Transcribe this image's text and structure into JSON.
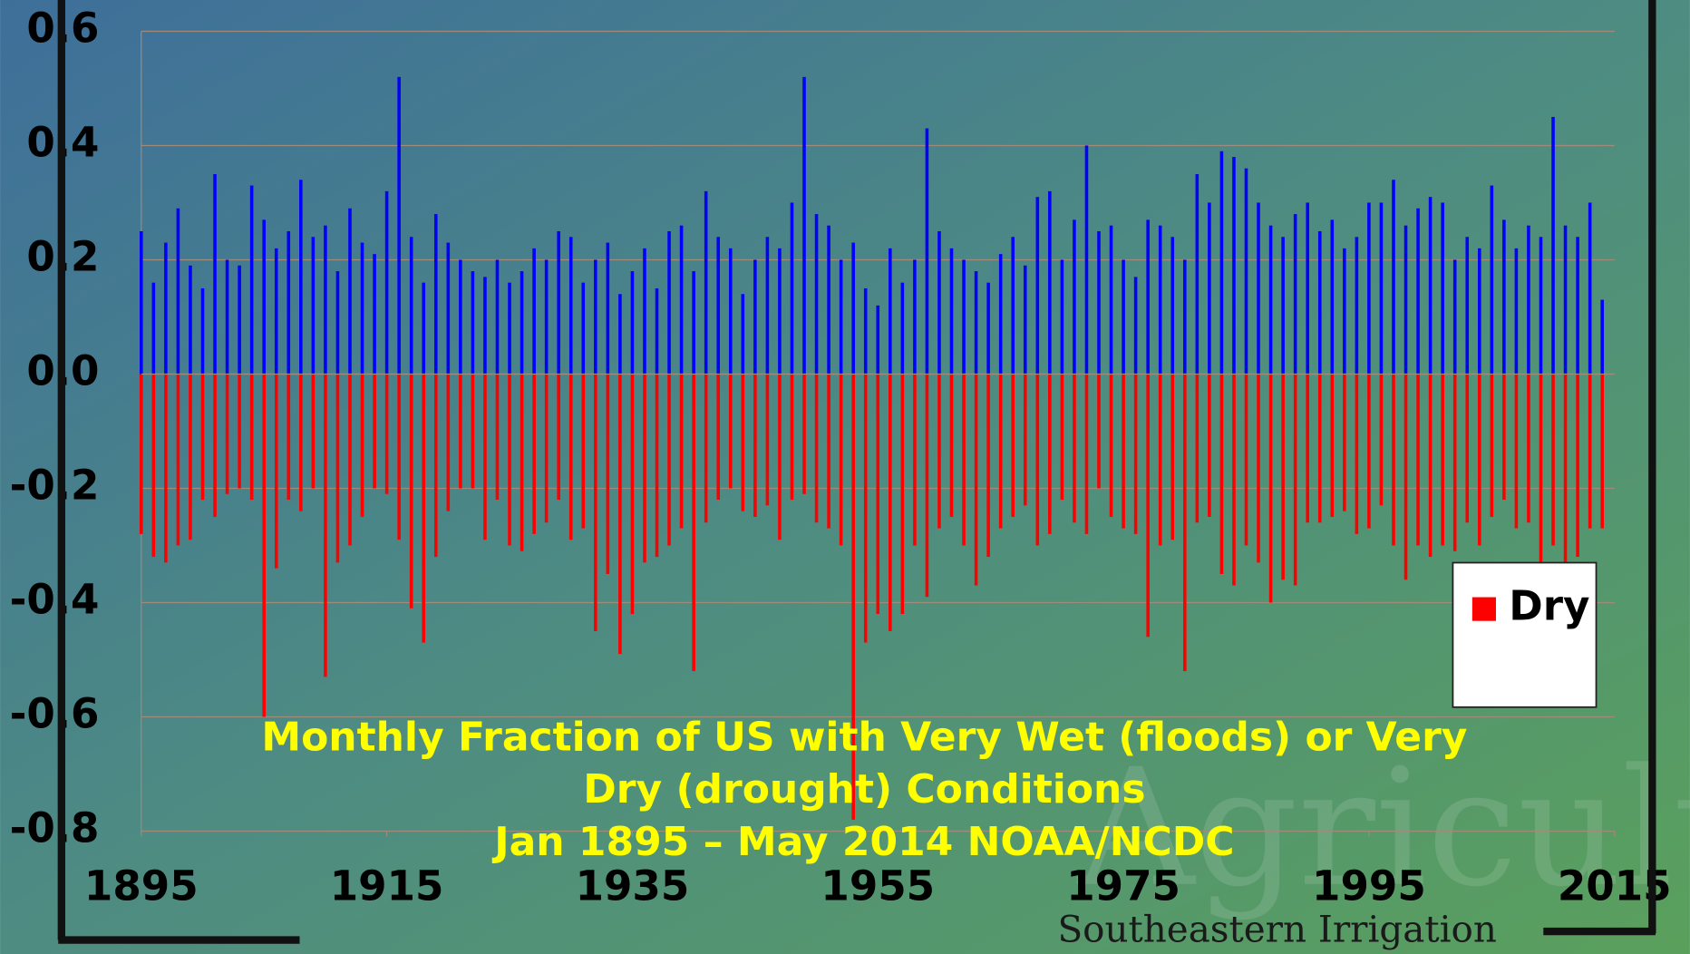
{
  "chart_data": {
    "type": "bar",
    "title_lines": [
      "Monthly Fraction of US with Very Wet (floods) or Very",
      "Dry (drought) Conditions",
      "Jan 1895 – May 2014  NOAA/NCDC"
    ],
    "watermark": "Southeastern Irrigation",
    "background_text": "Agriculture",
    "x": [
      1895,
      1896,
      1897,
      1898,
      1899,
      1900,
      1901,
      1902,
      1903,
      1904,
      1905,
      1906,
      1907,
      1908,
      1909,
      1910,
      1911,
      1912,
      1913,
      1914,
      1915,
      1916,
      1917,
      1918,
      1919,
      1920,
      1921,
      1922,
      1923,
      1924,
      1925,
      1926,
      1927,
      1928,
      1929,
      1930,
      1931,
      1932,
      1933,
      1934,
      1935,
      1936,
      1937,
      1938,
      1939,
      1940,
      1941,
      1942,
      1943,
      1944,
      1945,
      1946,
      1947,
      1948,
      1949,
      1950,
      1951,
      1952,
      1953,
      1954,
      1955,
      1956,
      1957,
      1958,
      1959,
      1960,
      1961,
      1962,
      1963,
      1964,
      1965,
      1966,
      1967,
      1968,
      1969,
      1970,
      1971,
      1972,
      1973,
      1974,
      1975,
      1976,
      1977,
      1978,
      1979,
      1980,
      1981,
      1982,
      1983,
      1984,
      1985,
      1986,
      1987,
      1988,
      1989,
      1990,
      1991,
      1992,
      1993,
      1994,
      1995,
      1996,
      1997,
      1998,
      1999,
      2000,
      2001,
      2002,
      2003,
      2004,
      2005,
      2006,
      2007,
      2008,
      2009,
      2010,
      2011,
      2012,
      2013,
      2014
    ],
    "series": [
      {
        "color": "#0000ff",
        "values": [
          0.25,
          0.16,
          0.23,
          0.29,
          0.19,
          0.15,
          0.35,
          0.2,
          0.19,
          0.33,
          0.27,
          0.22,
          0.25,
          0.34,
          0.24,
          0.26,
          0.18,
          0.29,
          0.23,
          0.21,
          0.32,
          0.52,
          0.24,
          0.16,
          0.28,
          0.23,
          0.2,
          0.18,
          0.17,
          0.2,
          0.16,
          0.18,
          0.22,
          0.2,
          0.25,
          0.24,
          0.16,
          0.2,
          0.23,
          0.14,
          0.18,
          0.22,
          0.15,
          0.25,
          0.26,
          0.18,
          0.32,
          0.24,
          0.22,
          0.14,
          0.2,
          0.24,
          0.22,
          0.3,
          0.52,
          0.28,
          0.26,
          0.2,
          0.23,
          0.15,
          0.12,
          0.22,
          0.16,
          0.2,
          0.43,
          0.25,
          0.22,
          0.2,
          0.18,
          0.16,
          0.21,
          0.24,
          0.19,
          0.31,
          0.32,
          0.2,
          0.27,
          0.4,
          0.25,
          0.26,
          0.2,
          0.17,
          0.27,
          0.26,
          0.24,
          0.2,
          0.35,
          0.3,
          0.39,
          0.38,
          0.36,
          0.3,
          0.26,
          0.24,
          0.28,
          0.3,
          0.25,
          0.27,
          0.22,
          0.24,
          0.3,
          0.3,
          0.34,
          0.26,
          0.29,
          0.31,
          0.3,
          0.2,
          0.24,
          0.22,
          0.33,
          0.27,
          0.22,
          0.26,
          0.24,
          0.45,
          0.26,
          0.24,
          0.3,
          0.13
        ]
      },
      {
        "name": "Dry",
        "color": "#ff0000",
        "values": [
          -0.28,
          -0.32,
          -0.33,
          -0.3,
          -0.29,
          -0.22,
          -0.25,
          -0.21,
          -0.2,
          -0.22,
          -0.6,
          -0.34,
          -0.22,
          -0.24,
          -0.2,
          -0.53,
          -0.33,
          -0.3,
          -0.25,
          -0.2,
          -0.21,
          -0.29,
          -0.41,
          -0.47,
          -0.32,
          -0.24,
          -0.2,
          -0.2,
          -0.29,
          -0.22,
          -0.3,
          -0.31,
          -0.28,
          -0.26,
          -0.22,
          -0.29,
          -0.27,
          -0.45,
          -0.35,
          -0.49,
          -0.42,
          -0.33,
          -0.32,
          -0.3,
          -0.27,
          -0.52,
          -0.26,
          -0.22,
          -0.2,
          -0.24,
          -0.25,
          -0.23,
          -0.29,
          -0.22,
          -0.21,
          -0.26,
          -0.27,
          -0.3,
          -0.78,
          -0.47,
          -0.42,
          -0.45,
          -0.42,
          -0.3,
          -0.39,
          -0.27,
          -0.25,
          -0.3,
          -0.37,
          -0.32,
          -0.27,
          -0.25,
          -0.23,
          -0.3,
          -0.28,
          -0.22,
          -0.26,
          -0.28,
          -0.2,
          -0.25,
          -0.27,
          -0.28,
          -0.46,
          -0.3,
          -0.29,
          -0.52,
          -0.26,
          -0.25,
          -0.35,
          -0.37,
          -0.3,
          -0.33,
          -0.4,
          -0.36,
          -0.37,
          -0.26,
          -0.26,
          -0.25,
          -0.24,
          -0.28,
          -0.27,
          -0.23,
          -0.3,
          -0.36,
          -0.3,
          -0.32,
          -0.3,
          -0.31,
          -0.26,
          -0.3,
          -0.25,
          -0.22,
          -0.27,
          -0.26,
          -0.33,
          -0.3,
          -0.35,
          -0.32,
          -0.27,
          -0.27
        ]
      }
    ],
    "xlim": [
      1895,
      2015
    ],
    "xticks": [
      1895,
      1915,
      1935,
      1955,
      1975,
      1995,
      2015
    ],
    "ylim": [
      -0.8,
      0.6
    ],
    "yticks": [
      -0.8,
      -0.6,
      -0.4,
      -0.2,
      {
        "value": 0,
        "label": "0.0"
      },
      0.2,
      0.4,
      0.6
    ],
    "grid": true,
    "legend": "right"
  }
}
